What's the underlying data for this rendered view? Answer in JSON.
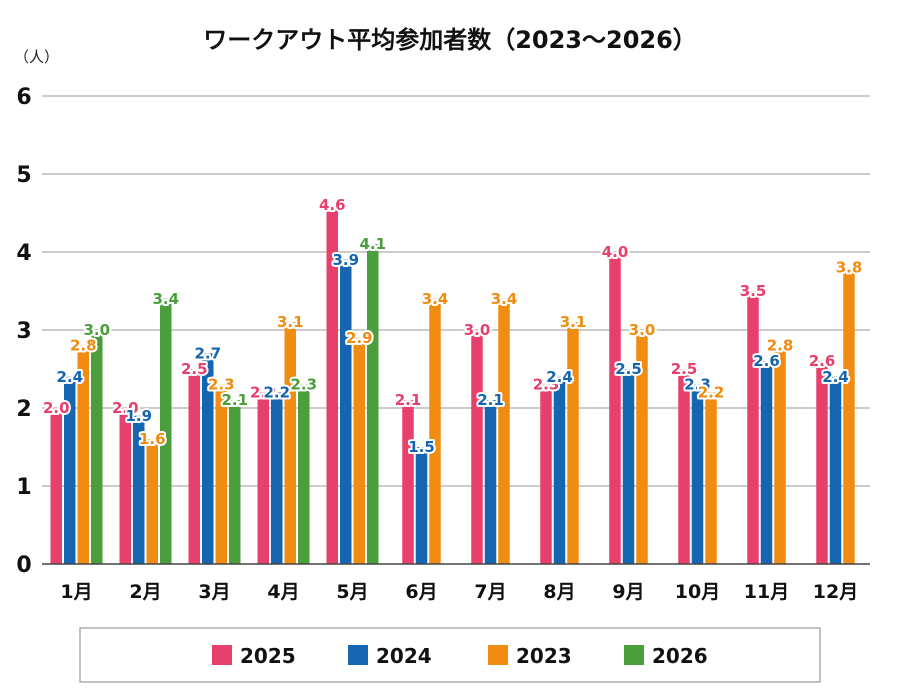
{
  "chart_data": {
    "type": "bar",
    "title": "ワークアウト平均参加者数（2023〜2026）",
    "unit_label": "（人）",
    "categories": [
      "1月",
      "2月",
      "3月",
      "4月",
      "5月",
      "6月",
      "7月",
      "8月",
      "9月",
      "10月",
      "11月",
      "12月"
    ],
    "ylim": [
      0,
      6
    ],
    "yticks": [
      0,
      1,
      2,
      3,
      4,
      5,
      6
    ],
    "grid": true,
    "legend_position": "bottom",
    "series": [
      {
        "name": "2025",
        "color": "#e8406d",
        "values": [
          2.0,
          2.0,
          2.5,
          2.2,
          4.6,
          2.1,
          3.0,
          2.3,
          4.0,
          2.5,
          3.5,
          2.6
        ]
      },
      {
        "name": "2024",
        "color": "#1565b0",
        "values": [
          2.4,
          1.9,
          2.7,
          2.2,
          3.9,
          1.5,
          2.1,
          2.4,
          2.5,
          2.3,
          2.6,
          2.4
        ]
      },
      {
        "name": "2023",
        "color": "#f08c12",
        "values": [
          2.8,
          1.6,
          2.3,
          3.1,
          2.9,
          3.4,
          3.4,
          3.1,
          3.0,
          2.2,
          2.8,
          3.8
        ]
      },
      {
        "name": "2026",
        "color": "#4a9e3c",
        "values": [
          3.0,
          3.4,
          2.1,
          2.3,
          4.1,
          null,
          null,
          null,
          null,
          null,
          null,
          null
        ]
      }
    ]
  }
}
